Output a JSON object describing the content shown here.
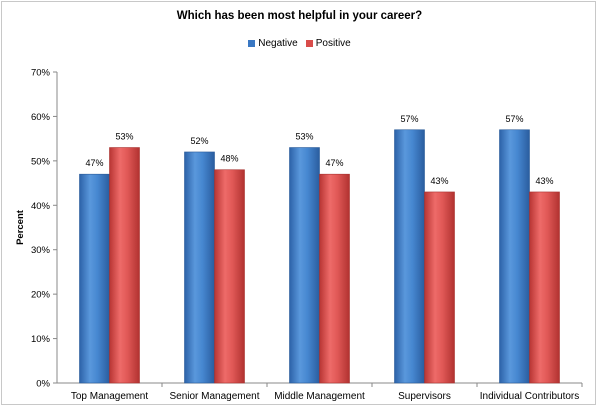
{
  "chart_data": {
    "type": "bar",
    "title": "Which has been most helpful in your career?",
    "xlabel": "",
    "ylabel": "Percent",
    "categories": [
      "Top Management",
      "Senior Management",
      "Middle Management",
      "Supervisors",
      "Individual Contributors"
    ],
    "series": [
      {
        "name": "Negative",
        "values": [
          47,
          52,
          53,
          57,
          57
        ],
        "color": "#3a78c3"
      },
      {
        "name": "Positive",
        "values": [
          53,
          48,
          47,
          43,
          43
        ],
        "color": "#d94c4a"
      }
    ],
    "ylim": [
      0,
      70
    ],
    "yticks": [
      0,
      10,
      20,
      30,
      40,
      50,
      60,
      70
    ],
    "ytick_labels": [
      "0%",
      "10%",
      "20%",
      "30%",
      "40%",
      "50%",
      "60%",
      "70%"
    ],
    "data_label_suffix": "%",
    "legend_position": "top",
    "grid": false
  }
}
